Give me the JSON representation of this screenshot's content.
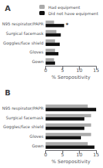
{
  "chart_data": [
    {
      "type": "bar",
      "orientation": "horizontal",
      "title": "A",
      "categories": [
        "N95 respirator/PAPR",
        "Surgical facemask",
        "Goggles/face shield",
        "Gloves",
        "Gown"
      ],
      "series": [
        {
          "name": "Had equipment",
          "color": "#aaaaaa",
          "values": [
            2.5,
            3.2,
            2.8,
            2.8,
            2.5
          ]
        },
        {
          "name": "Did not have equipment",
          "color": "#111111",
          "values": [
            5.5,
            4.5,
            4.2,
            3.8,
            2.8
          ]
        }
      ],
      "xlim": [
        0,
        15
      ],
      "xticks": [
        0,
        5,
        10,
        15
      ],
      "xlabel": "% Seropositivity",
      "grid": false,
      "legend": "upper right",
      "annotations": [
        {
          "text": "*",
          "category": "N95 respirator/PAPR",
          "series": "Did not have equipment"
        }
      ]
    },
    {
      "type": "bar",
      "orientation": "horizontal",
      "title": "B",
      "categories": [
        "N95 respirator/PAPR",
        "Surgical facemask",
        "Goggles/face shield",
        "Gloves",
        "Gown"
      ],
      "series": [
        {
          "name": "Had equipment",
          "color": "#aaaaaa",
          "values": [
            12.5,
            13.5,
            13.5,
            13.5,
            12.5
          ]
        },
        {
          "name": "Did not have equipment",
          "color": "#111111",
          "values": [
            15.0,
            11.5,
            11.5,
            10.5,
            14.5
          ]
        }
      ],
      "xlim": [
        0,
        15
      ],
      "xticks": [
        0,
        5,
        10,
        15
      ],
      "xlabel": "% Seropositivity",
      "grid": false
    }
  ]
}
